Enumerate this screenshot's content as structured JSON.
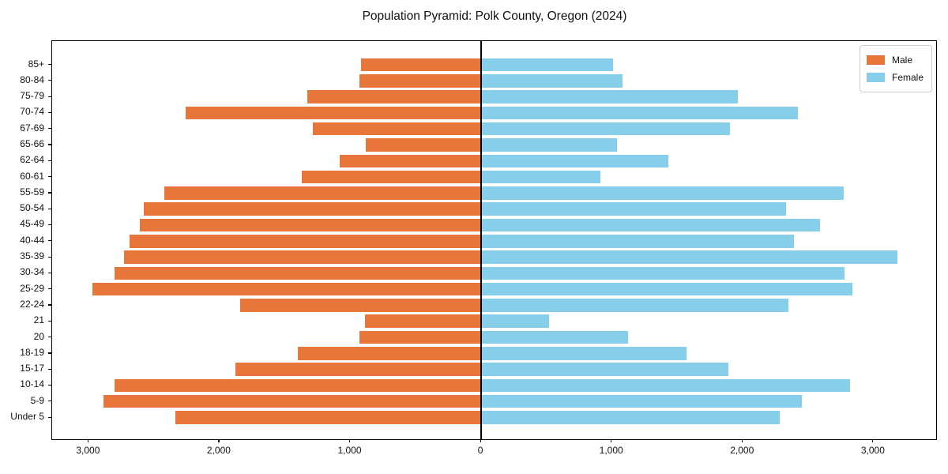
{
  "title": "Population Pyramid: Polk County, Oregon (2024)",
  "legend": {
    "male_label": "Male",
    "female_label": "Female"
  },
  "colors": {
    "male": "#e8753a",
    "female": "#87ceeb",
    "axis": "#000000",
    "legend_border": "#cccccc",
    "background": "#ffffff"
  },
  "chart_data": {
    "type": "bar",
    "variant": "population-pyramid",
    "orientation": "horizontal",
    "title": "Population Pyramid: Polk County, Oregon (2024)",
    "categories": [
      "85+",
      "80-84",
      "75-79",
      "70-74",
      "67-69",
      "65-66",
      "62-64",
      "60-61",
      "55-59",
      "50-54",
      "45-49",
      "40-44",
      "35-39",
      "30-34",
      "25-29",
      "22-24",
      "21",
      "20",
      "18-19",
      "15-17",
      "10-14",
      "5-9",
      "Under 5"
    ],
    "series": [
      {
        "name": "Male",
        "side": "left",
        "color": "#e8753a",
        "values": [
          920,
          930,
          1330,
          2260,
          1290,
          880,
          1080,
          1370,
          2420,
          2580,
          2610,
          2690,
          2730,
          2800,
          2970,
          1840,
          890,
          930,
          1400,
          1880,
          2800,
          2890,
          2340
        ]
      },
      {
        "name": "Female",
        "side": "right",
        "color": "#87ceeb",
        "values": [
          1010,
          1080,
          1960,
          2420,
          1900,
          1040,
          1430,
          910,
          2770,
          2330,
          2590,
          2390,
          3180,
          2780,
          2840,
          2350,
          520,
          1120,
          1570,
          1890,
          2820,
          2450,
          2280
        ]
      }
    ],
    "x_tick_values": [
      -3000,
      -2000,
      -1000,
      0,
      1000,
      2000,
      3000
    ],
    "x_tick_labels": [
      "3,000",
      "2,000",
      "1,000",
      "0",
      "1,000",
      "2,000",
      "3,000"
    ],
    "xlim": [
      -3280,
      3490
    ],
    "grid": false,
    "legend_position": "upper right",
    "center_line_x": 0
  }
}
